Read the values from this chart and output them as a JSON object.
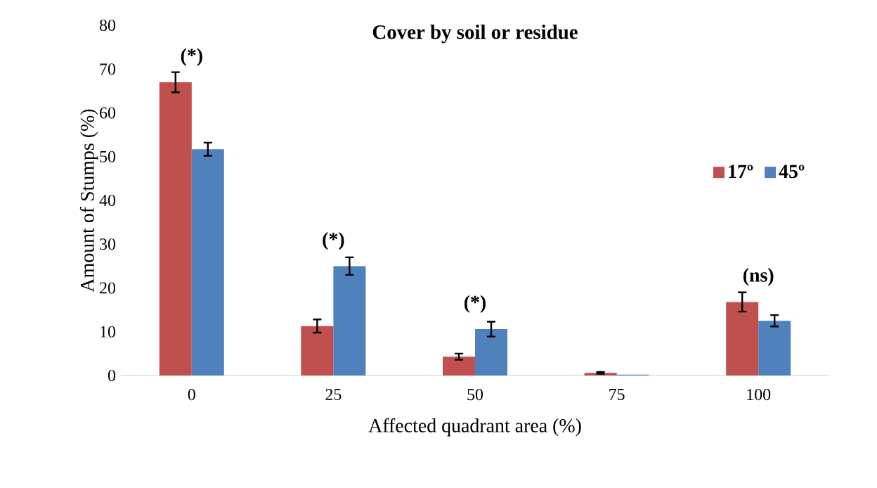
{
  "chart_data": {
    "type": "bar",
    "title": "Cover by soil or residue",
    "xlabel": "Affected quadrant area (%)",
    "ylabel": "Amount  of Stumps (%)",
    "categories": [
      "0",
      "25",
      "50",
      "75",
      "100"
    ],
    "series": [
      {
        "name": "17º",
        "color": "#c0504d",
        "values": [
          67,
          11.3,
          4.3,
          0.6,
          16.8
        ],
        "errors": [
          2.3,
          1.5,
          0.7,
          0.2,
          2.2
        ]
      },
      {
        "name": "45º",
        "color": "#4f81bd",
        "values": [
          51.7,
          25,
          10.6,
          0.2,
          12.5
        ],
        "errors": [
          1.5,
          2,
          1.7,
          null,
          1.3
        ]
      }
    ],
    "ylim": [
      0,
      80
    ],
    "yticks": [
      0,
      10,
      20,
      30,
      40,
      50,
      60,
      70,
      80
    ],
    "legend": "right",
    "grid": false,
    "annotations": [
      {
        "text": "(*)",
        "x": "0",
        "y": 67
      },
      {
        "text": "(*)",
        "x": "25",
        "y": 25
      },
      {
        "text": "(*)",
        "x": "50",
        "y": 10.6
      },
      {
        "text": "(ns)",
        "x": "100",
        "y": 16.8
      }
    ]
  }
}
